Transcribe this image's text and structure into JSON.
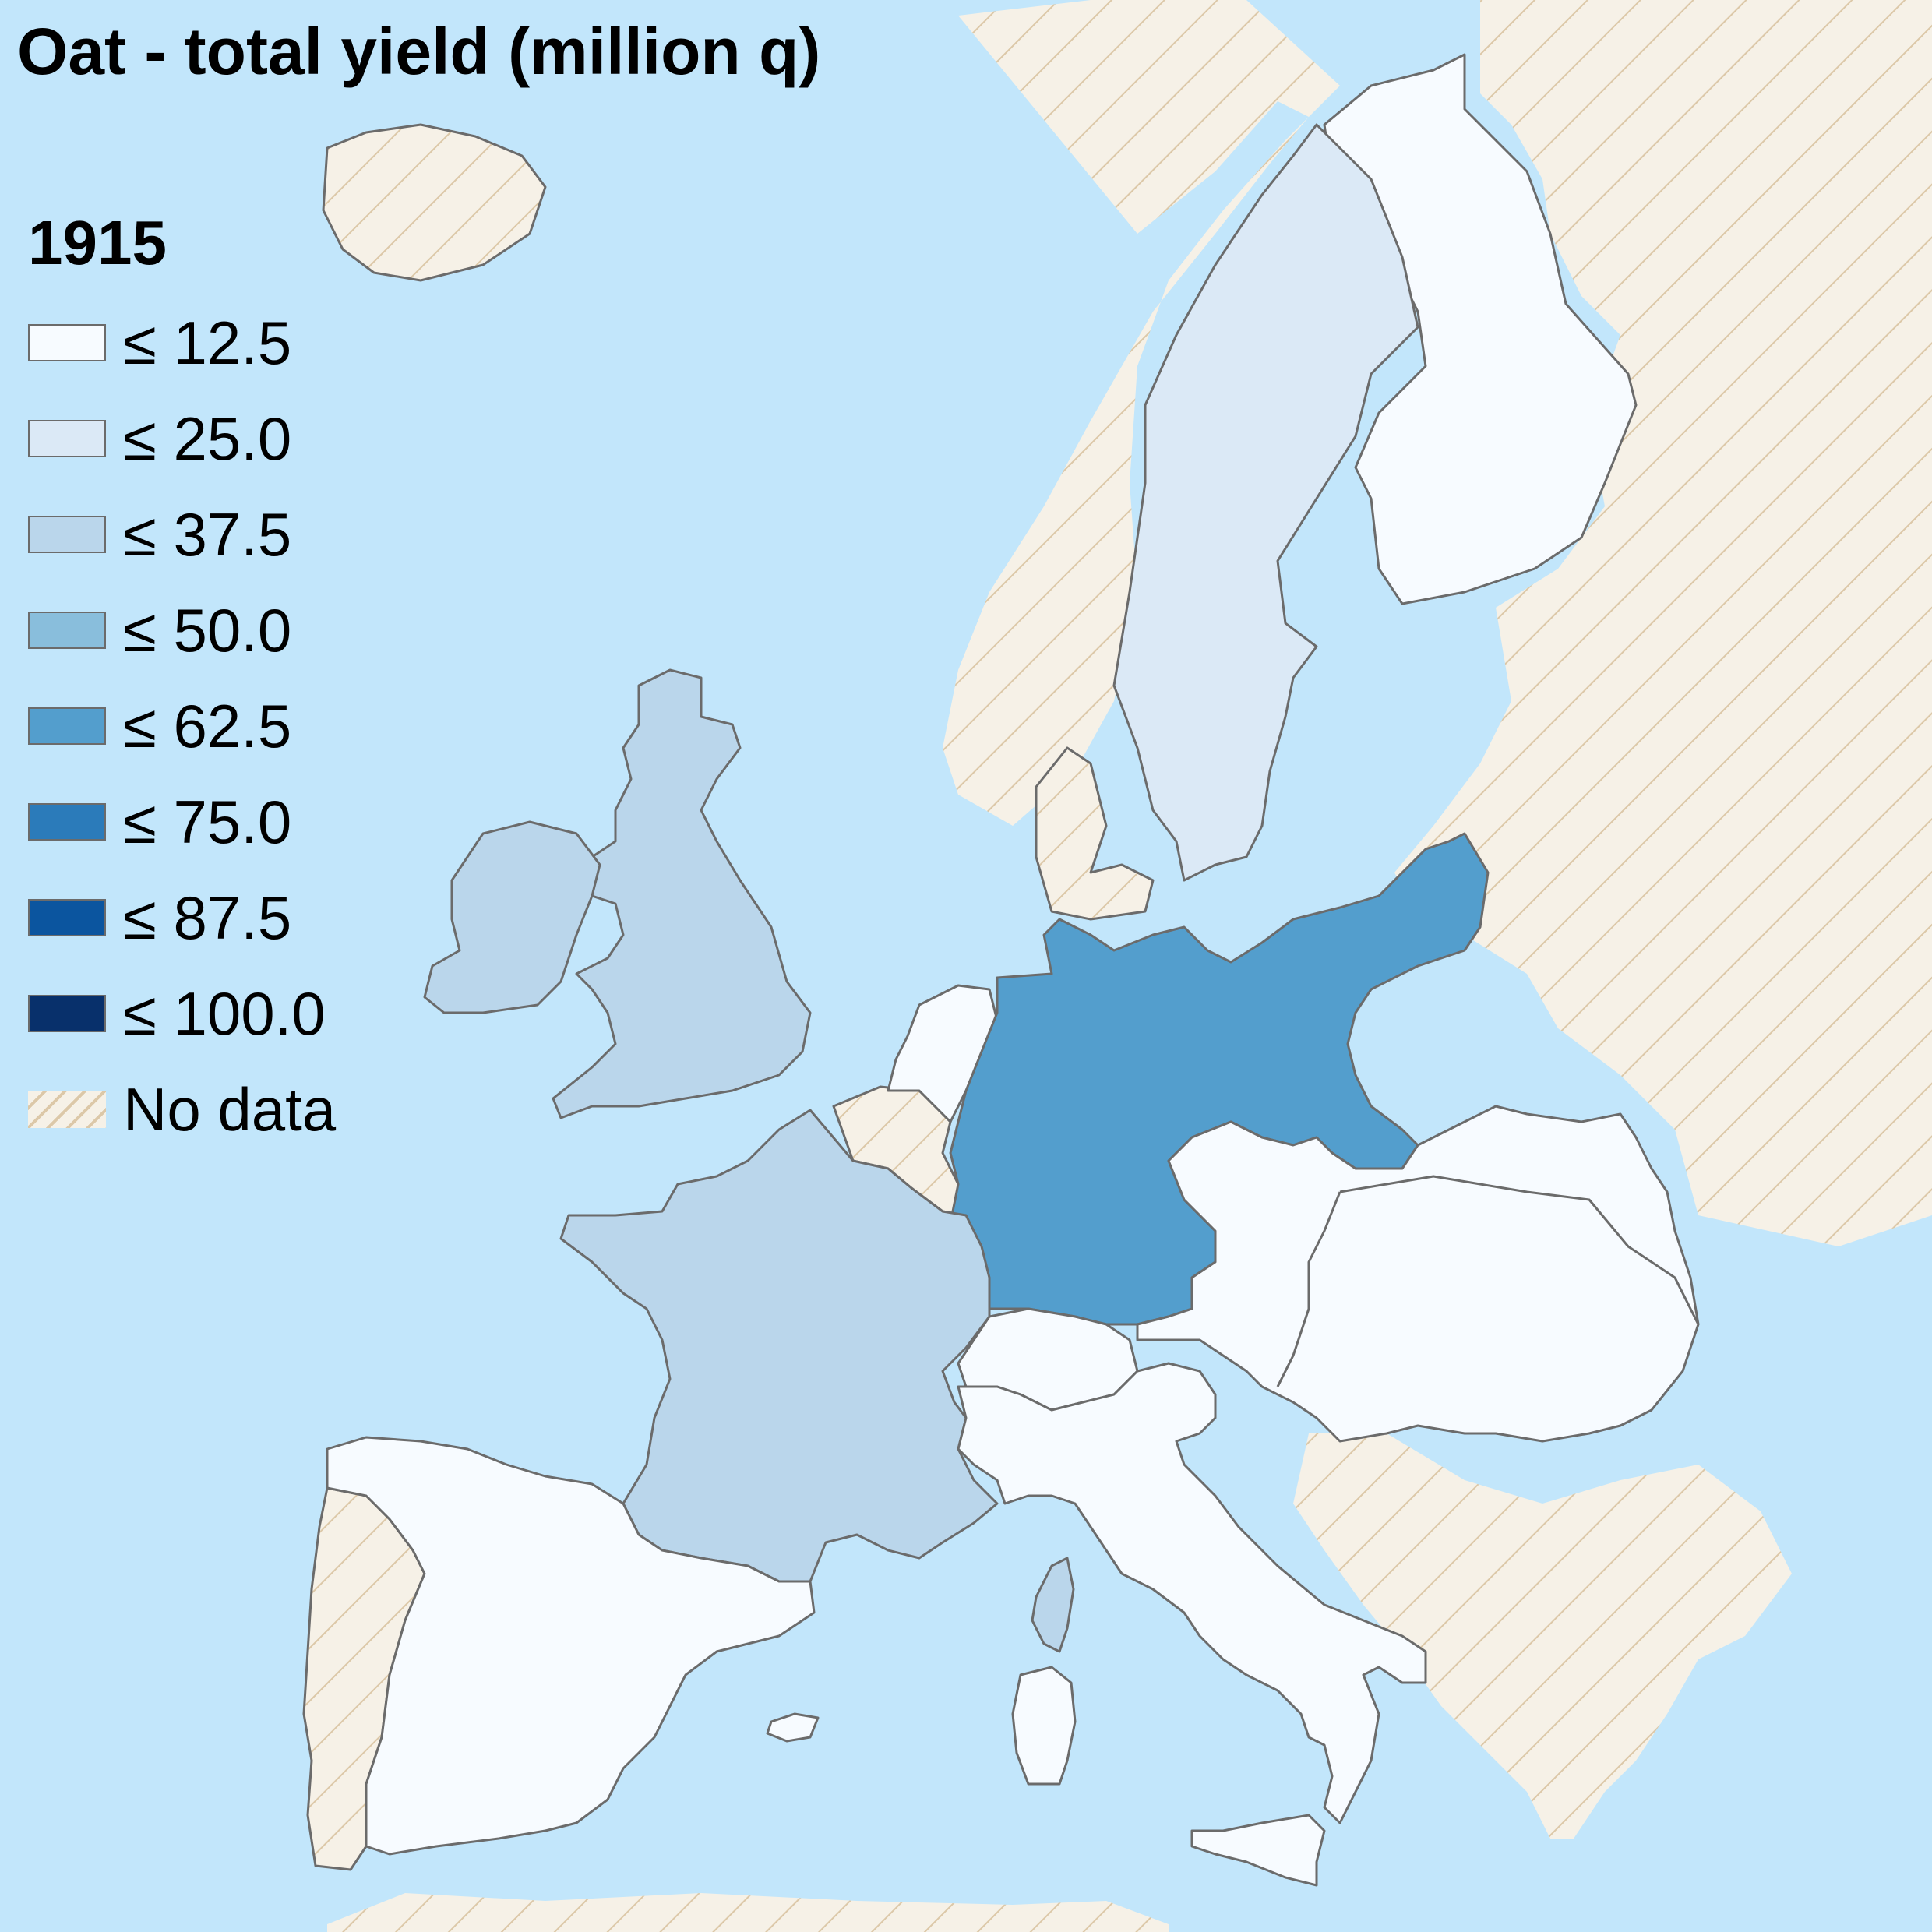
{
  "title": "Oat - total yield (million q)",
  "legend": {
    "year": "1915",
    "items": [
      {
        "label": "≤ 12.5",
        "color": "#f7fbff"
      },
      {
        "label": "≤ 25.0",
        "color": "#dbe9f6"
      },
      {
        "label": "≤ 37.5",
        "color": "#bad6eb"
      },
      {
        "label": "≤ 50.0",
        "color": "#89bedc"
      },
      {
        "label": "≤ 62.5",
        "color": "#539ecd"
      },
      {
        "label": "≤ 75.0",
        "color": "#2b7bba"
      },
      {
        "label": "≤ 87.5",
        "color": "#0b559f"
      },
      {
        "label": "≤ 100.0",
        "color": "#08306b"
      },
      {
        "label": "No data",
        "color": "#f6f1e7",
        "pattern": "diagonal-hatch"
      }
    ]
  },
  "colors": {
    "sea": "#c2e6fb",
    "no_data_fill": "#f6f1e7",
    "no_data_hatch": "#dcc8a8",
    "border": "#6b6b6b"
  },
  "regions": [
    {
      "name": "Finland",
      "class": "≤ 12.5"
    },
    {
      "name": "Sweden",
      "class": "≤ 25.0"
    },
    {
      "name": "Great Britain",
      "class": "≤ 37.5"
    },
    {
      "name": "Ireland",
      "class": "≤ 37.5"
    },
    {
      "name": "France",
      "class": "≤ 37.5"
    },
    {
      "name": "Corsica",
      "class": "≤ 37.5"
    },
    {
      "name": "Germany",
      "class": "≤ 62.5"
    },
    {
      "name": "Netherlands",
      "class": "≤ 12.5"
    },
    {
      "name": "Spain",
      "class": "≤ 12.5"
    },
    {
      "name": "Italy",
      "class": "≤ 12.5"
    },
    {
      "name": "Switzerland",
      "class": "≤ 12.5"
    },
    {
      "name": "Austria",
      "class": "≤ 12.5"
    },
    {
      "name": "Hungary",
      "class": "≤ 12.5"
    },
    {
      "name": "Sardinia",
      "class": "≤ 12.5"
    },
    {
      "name": "Sicily",
      "class": "≤ 12.5"
    },
    {
      "name": "Belgium",
      "class": "No data"
    },
    {
      "name": "Norway",
      "class": "No data"
    },
    {
      "name": "Denmark",
      "class": "No data"
    },
    {
      "name": "Portugal",
      "class": "No data"
    },
    {
      "name": "Russia",
      "class": "No data"
    },
    {
      "name": "Iceland",
      "class": "No data"
    },
    {
      "name": "Balkans",
      "class": "No data"
    },
    {
      "name": "North Africa",
      "class": "No data"
    }
  ]
}
